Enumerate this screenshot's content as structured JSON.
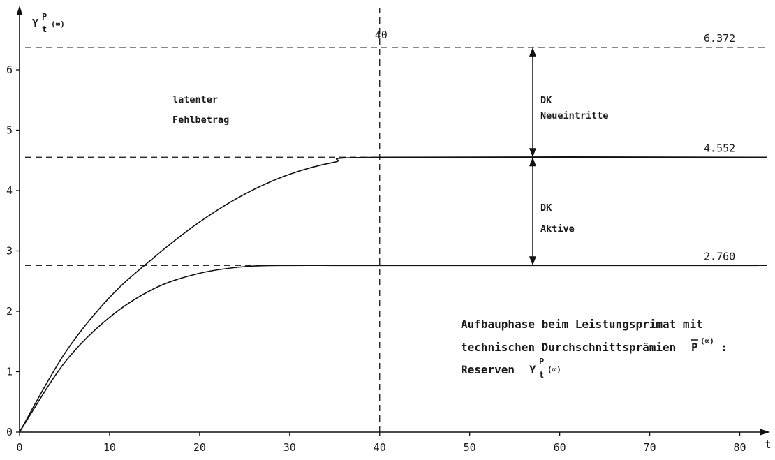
{
  "chart_data": {
    "type": "line",
    "ylabel_main": "Y",
    "ylabel_sup": "P",
    "ylabel_sub": "t",
    "ylabel_paren": "(∞)",
    "xlabel": "t",
    "xlim": [
      0,
      83
    ],
    "ylim": [
      0,
      6.9
    ],
    "x_ticks": [
      0,
      10,
      20,
      30,
      40,
      50,
      60,
      70,
      80
    ],
    "y_ticks": [
      0,
      1,
      2,
      3,
      4,
      5,
      6
    ],
    "grid": false,
    "series": [
      {
        "x": [
          0,
          5,
          10,
          15,
          20,
          25,
          30,
          35,
          40,
          82
        ],
        "values": [
          0,
          1.3,
          2.23,
          2.9,
          3.48,
          3.94,
          4.27,
          4.47,
          4.552,
          4.552
        ]
      },
      {
        "x": [
          0,
          5,
          10,
          15,
          20,
          25,
          30,
          35,
          40,
          82
        ],
        "values": [
          0,
          1.15,
          1.9,
          2.38,
          2.63,
          2.74,
          2.76,
          2.76,
          2.76,
          2.76
        ]
      }
    ],
    "reference_lines": [
      {
        "y": 6.372,
        "label": "6.372"
      },
      {
        "y": 4.552,
        "label": "4.552"
      },
      {
        "y": 2.76,
        "label": "2.760"
      }
    ],
    "vertical_marker": {
      "x": 40,
      "label": "40"
    },
    "annotations": {
      "region_line1": "latenter",
      "region_line2": "Fehlbetrag",
      "upper_arrow_line1": "DK",
      "upper_arrow_line2": "Neueintritte",
      "lower_arrow_line1": "DK",
      "lower_arrow_line2": "Aktive",
      "arrow_x": 57
    },
    "caption": {
      "line1": "Aufbauphase beim Leistungsprimat mit",
      "line2": "technischen Durchschnittsprämien",
      "line2_symbol": "P",
      "line2_sup": "(∞)",
      "line2_end": ":",
      "line3": "Reserven",
      "line3_symbol": "Y",
      "line3_sup": "P",
      "line3_sub": "t",
      "line3_paren": "(∞)"
    }
  }
}
